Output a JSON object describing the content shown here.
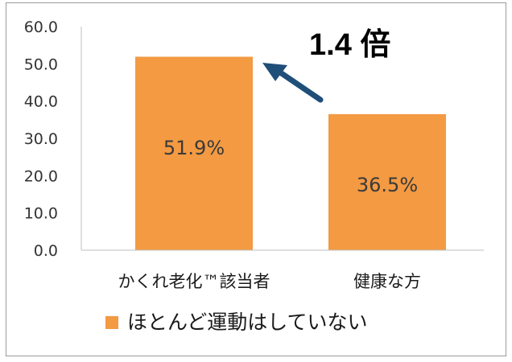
{
  "chart_data": {
    "type": "bar",
    "categories": [
      "かくれ老化™該当者",
      "健康な方"
    ],
    "series": [
      {
        "name": "ほとんど運動はしていない",
        "values": [
          51.9,
          36.5
        ],
        "color": "#f39a43"
      }
    ],
    "data_labels": [
      "51.9%",
      "36.5%"
    ],
    "y_ticks": [
      "0.0",
      "10.0",
      "20.0",
      "30.0",
      "40.0",
      "50.0",
      "60.0"
    ],
    "ylim": [
      0,
      60
    ],
    "grid": false,
    "legend_position": "bottom",
    "annotation": {
      "text": "1.4 倍",
      "arrow_color": "#1f4e79"
    }
  }
}
